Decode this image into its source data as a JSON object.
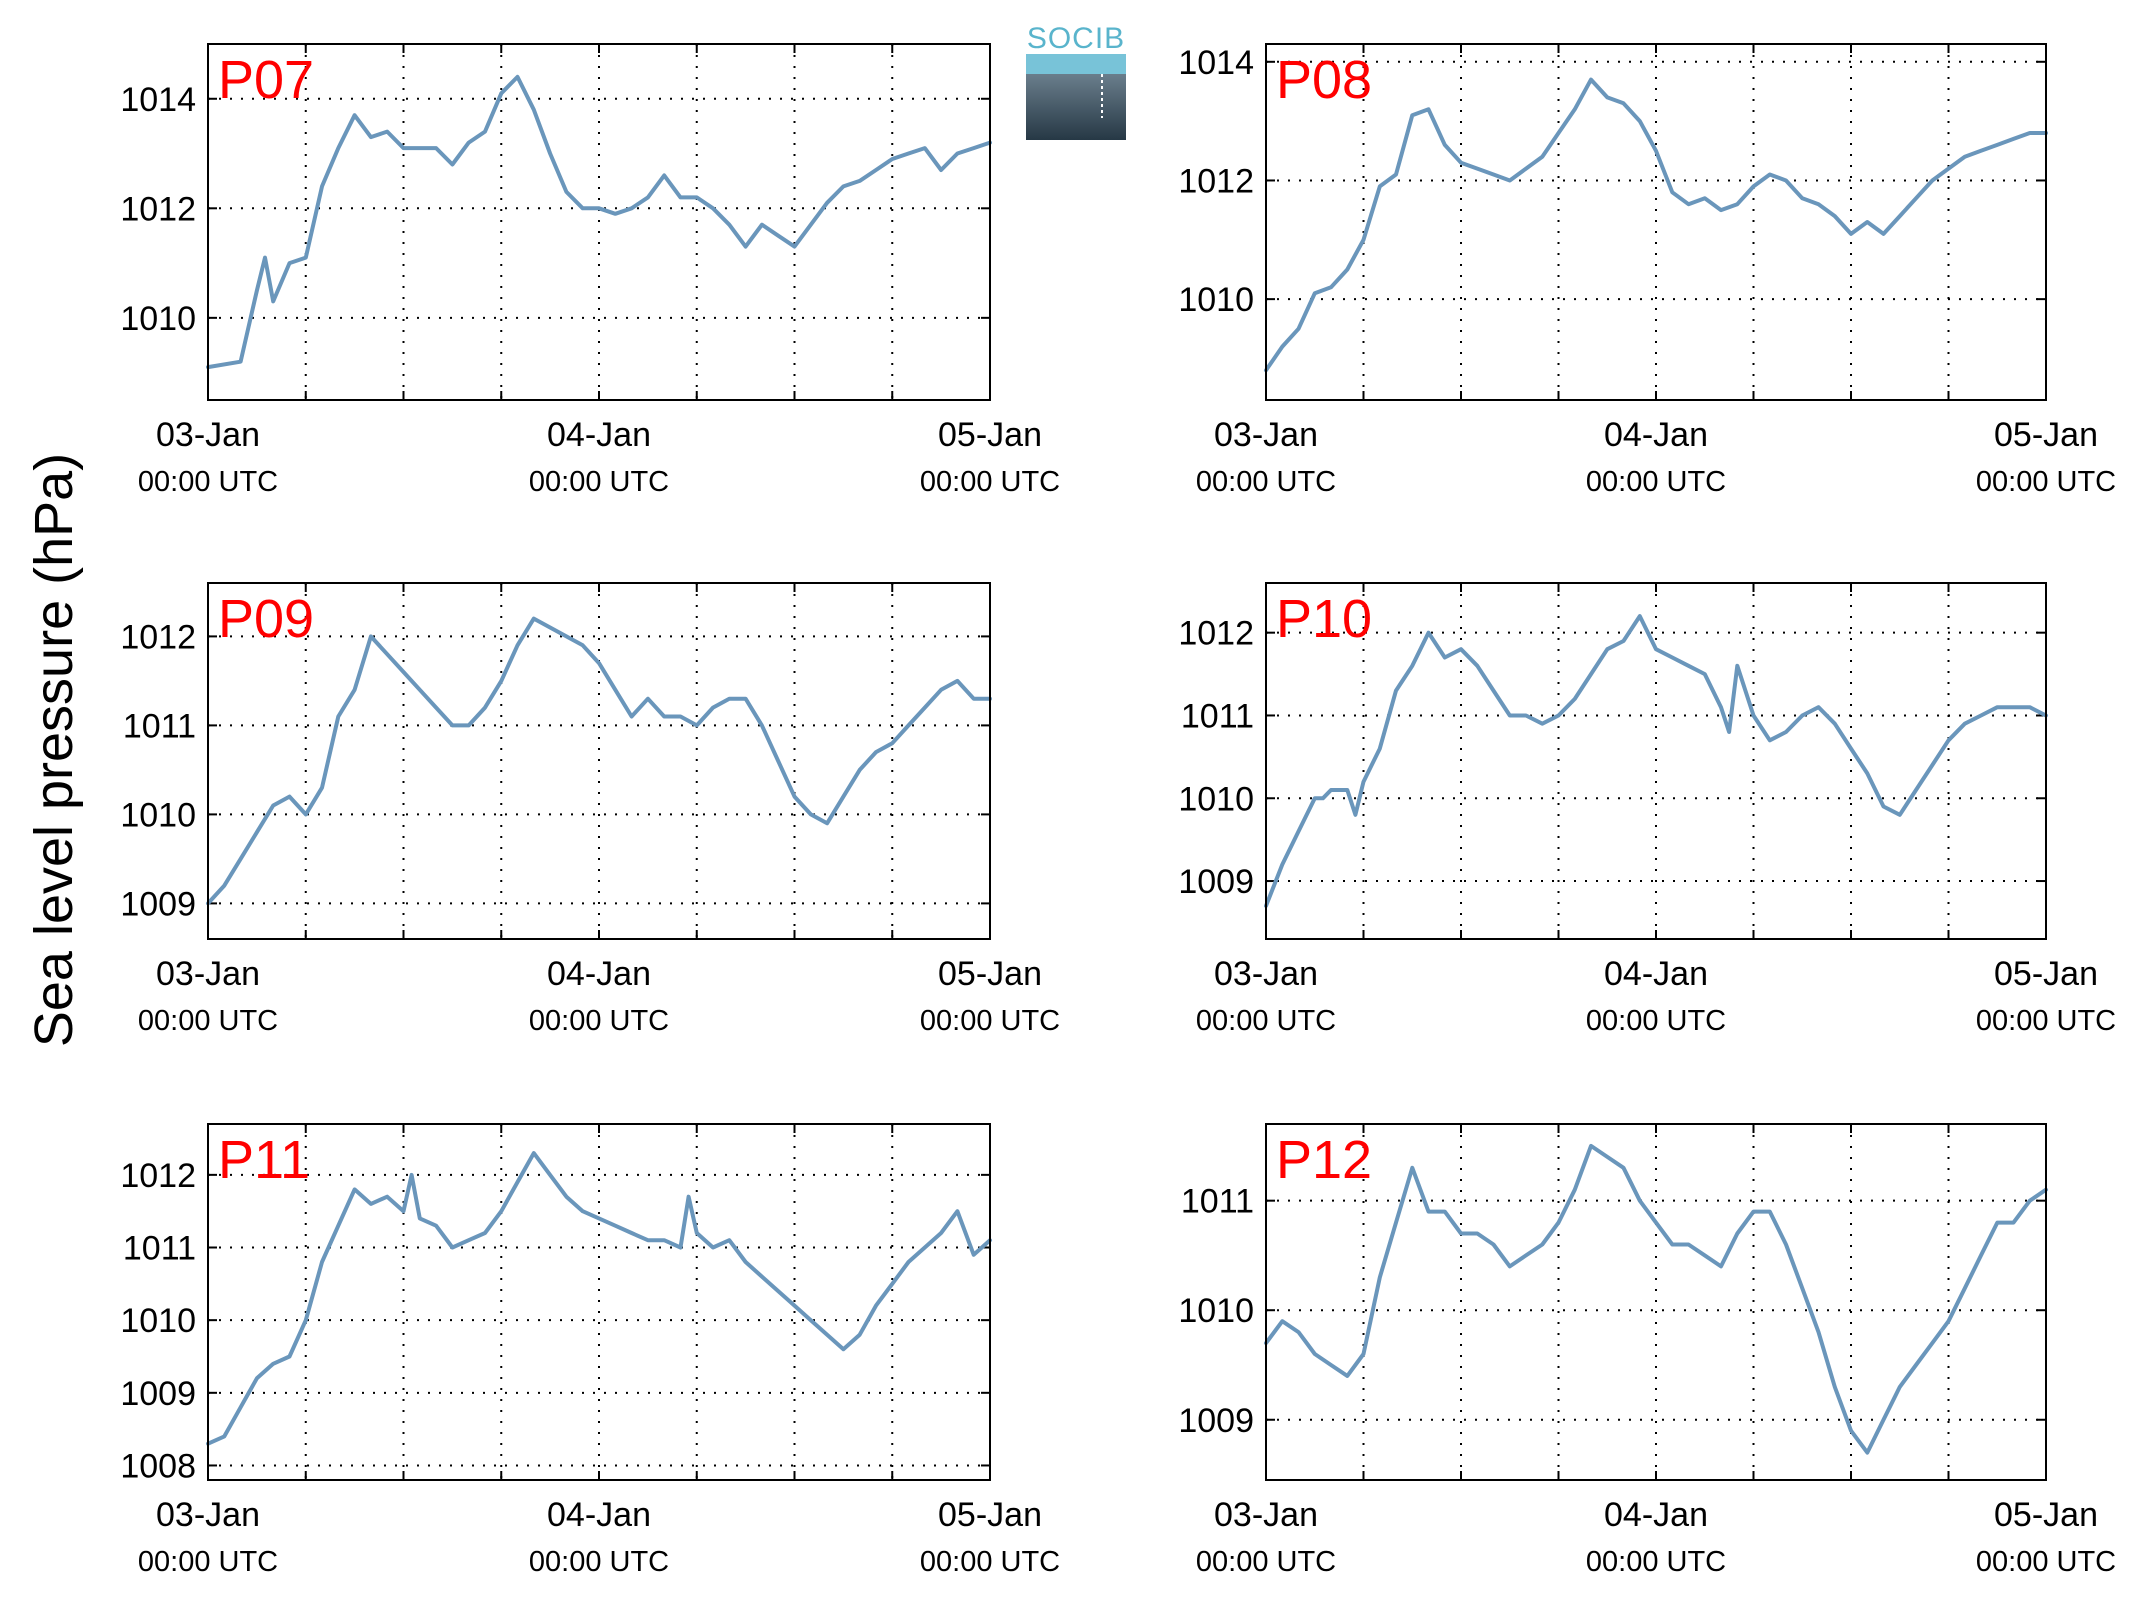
{
  "figure": {
    "ylabel": "Sea level pressure (hPa)",
    "logo": {
      "text": "SOCIB"
    },
    "x_tick_labels": [
      {
        "date": "03-Jan",
        "time": "00:00 UTC"
      },
      {
        "date": "04-Jan",
        "time": "00:00 UTC"
      },
      {
        "date": "05-Jan",
        "time": "00:00 UTC"
      }
    ]
  },
  "colors": {
    "line": "#6a96bb",
    "label": "#ff0000",
    "axes": "#000000",
    "grid": "#000000"
  },
  "chart_data": [
    {
      "type": "line",
      "panel": "P07",
      "xlim": [
        0,
        48
      ],
      "ylim": [
        1008.5,
        1015
      ],
      "yticks": [
        1010,
        1012,
        1014
      ],
      "x_unit": "hours since 03-Jan 00:00 UTC",
      "grid": true,
      "x": [
        0,
        2,
        3,
        3.5,
        4,
        5,
        6,
        7,
        8,
        9,
        10,
        11,
        12,
        13,
        14,
        15,
        16,
        17,
        18,
        19,
        20,
        21,
        22,
        23,
        24,
        25,
        26,
        27,
        28,
        29,
        30,
        31,
        32,
        33,
        34,
        35,
        36,
        37,
        38,
        39,
        40,
        41,
        42,
        43,
        44,
        45,
        46,
        47,
        48
      ],
      "y": [
        1009.1,
        1009.2,
        1010.5,
        1011.1,
        1010.3,
        1011,
        1011.1,
        1012.4,
        1013.1,
        1013.7,
        1013.3,
        1013.4,
        1013.1,
        1013.1,
        1013.1,
        1012.8,
        1013.2,
        1013.4,
        1014.1,
        1014.4,
        1013.8,
        1013,
        1012.3,
        1012,
        1012,
        1011.9,
        1012,
        1012.2,
        1012.6,
        1012.2,
        1012.2,
        1012,
        1011.7,
        1011.3,
        1011.7,
        1011.5,
        1011.3,
        1011.7,
        1012.1,
        1012.4,
        1012.5,
        1012.7,
        1012.9,
        1013,
        1013.1,
        1012.7,
        1013,
        1013.1,
        1013.2
      ]
    },
    {
      "type": "line",
      "panel": "P08",
      "xlim": [
        0,
        48
      ],
      "ylim": [
        1008.3,
        1014.3
      ],
      "yticks": [
        1010,
        1012,
        1014
      ],
      "x_unit": "hours since 03-Jan 00:00 UTC",
      "grid": true,
      "x": [
        0,
        1,
        2,
        3,
        4,
        5,
        6,
        7,
        8,
        9,
        10,
        11,
        12,
        13,
        14,
        15,
        16,
        17,
        18,
        19,
        20,
        21,
        22,
        23,
        24,
        25,
        26,
        27,
        28,
        29,
        30,
        31,
        32,
        33,
        34,
        35,
        36,
        37,
        38,
        39,
        40,
        41,
        42,
        43,
        44,
        45,
        46,
        47,
        48
      ],
      "y": [
        1008.8,
        1009.2,
        1009.5,
        1010.1,
        1010.2,
        1010.5,
        1011,
        1011.9,
        1012.1,
        1013.1,
        1013.2,
        1012.6,
        1012.3,
        1012.2,
        1012.1,
        1012,
        1012.2,
        1012.4,
        1012.8,
        1013.2,
        1013.7,
        1013.4,
        1013.3,
        1013,
        1012.5,
        1011.8,
        1011.6,
        1011.7,
        1011.5,
        1011.6,
        1011.9,
        1012.1,
        1012,
        1011.7,
        1011.6,
        1011.4,
        1011.1,
        1011.3,
        1011.1,
        1011.4,
        1011.7,
        1012,
        1012.2,
        1012.4,
        1012.5,
        1012.6,
        1012.7,
        1012.8,
        1012.8
      ]
    },
    {
      "type": "line",
      "panel": "P09",
      "xlim": [
        0,
        48
      ],
      "ylim": [
        1008.6,
        1012.6
      ],
      "yticks": [
        1009,
        1010,
        1011,
        1012
      ],
      "x_unit": "hours since 03-Jan 00:00 UTC",
      "grid": true,
      "x": [
        0,
        1,
        2,
        3,
        4,
        5,
        6,
        7,
        8,
        9,
        10,
        11,
        12,
        13,
        14,
        15,
        16,
        17,
        18,
        19,
        20,
        21,
        22,
        23,
        24,
        25,
        26,
        27,
        28,
        29,
        30,
        31,
        32,
        33,
        34,
        35,
        36,
        37,
        38,
        39,
        40,
        41,
        42,
        43,
        44,
        45,
        46,
        47,
        48
      ],
      "y": [
        1009,
        1009.2,
        1009.5,
        1009.8,
        1010.1,
        1010.2,
        1010,
        1010.3,
        1011.1,
        1011.4,
        1012,
        1011.8,
        1011.6,
        1011.4,
        1011.2,
        1011,
        1011,
        1011.2,
        1011.5,
        1011.9,
        1012.2,
        1012.1,
        1012,
        1011.9,
        1011.7,
        1011.4,
        1011.1,
        1011.3,
        1011.1,
        1011.1,
        1011,
        1011.2,
        1011.3,
        1011.3,
        1011,
        1010.6,
        1010.2,
        1010,
        1009.9,
        1010.2,
        1010.5,
        1010.7,
        1010.8,
        1011,
        1011.2,
        1011.4,
        1011.5,
        1011.3,
        1011.3
      ]
    },
    {
      "type": "line",
      "panel": "P10",
      "xlim": [
        0,
        48
      ],
      "ylim": [
        1008.3,
        1012.6
      ],
      "yticks": [
        1009,
        1010,
        1011,
        1012
      ],
      "x_unit": "hours since 03-Jan 00:00 UTC",
      "grid": true,
      "x": [
        0,
        1,
        2,
        3,
        3.5,
        4,
        5,
        5.5,
        6,
        7,
        8,
        9,
        10,
        11,
        12,
        13,
        14,
        15,
        16,
        17,
        18,
        19,
        20,
        21,
        22,
        23,
        24,
        25,
        26,
        27,
        28,
        28.5,
        29,
        30,
        31,
        32,
        33,
        34,
        35,
        36,
        37,
        38,
        39,
        40,
        41,
        42,
        43,
        44,
        45,
        46,
        47,
        48
      ],
      "y": [
        1008.7,
        1009.2,
        1009.6,
        1010,
        1010,
        1010.1,
        1010.1,
        1009.8,
        1010.2,
        1010.6,
        1011.3,
        1011.6,
        1012,
        1011.7,
        1011.8,
        1011.6,
        1011.3,
        1011,
        1011,
        1010.9,
        1011,
        1011.2,
        1011.5,
        1011.8,
        1011.9,
        1012.2,
        1011.8,
        1011.7,
        1011.6,
        1011.5,
        1011.1,
        1010.8,
        1011.6,
        1011,
        1010.7,
        1010.8,
        1011,
        1011.1,
        1010.9,
        1010.6,
        1010.3,
        1009.9,
        1009.8,
        1010.1,
        1010.4,
        1010.7,
        1010.9,
        1011,
        1011.1,
        1011.1,
        1011.1,
        1011
      ]
    },
    {
      "type": "line",
      "panel": "P11",
      "xlim": [
        0,
        48
      ],
      "ylim": [
        1007.8,
        1012.7
      ],
      "yticks": [
        1008,
        1009,
        1010,
        1011,
        1012
      ],
      "x_unit": "hours since 03-Jan 00:00 UTC",
      "grid": true,
      "x": [
        0,
        1,
        2,
        3,
        4,
        5,
        6,
        7,
        8,
        9,
        10,
        11,
        12,
        12.5,
        13,
        14,
        15,
        16,
        17,
        18,
        19,
        20,
        21,
        22,
        23,
        24,
        25,
        26,
        27,
        28,
        29,
        29.5,
        30,
        31,
        32,
        33,
        34,
        35,
        36,
        37,
        38,
        39,
        40,
        41,
        42,
        43,
        44,
        45,
        46,
        47,
        48
      ],
      "y": [
        1008.3,
        1008.4,
        1008.8,
        1009.2,
        1009.4,
        1009.5,
        1010,
        1010.8,
        1011.3,
        1011.8,
        1011.6,
        1011.7,
        1011.5,
        1012,
        1011.4,
        1011.3,
        1011,
        1011.1,
        1011.2,
        1011.5,
        1011.9,
        1012.3,
        1012,
        1011.7,
        1011.5,
        1011.4,
        1011.3,
        1011.2,
        1011.1,
        1011.1,
        1011,
        1011.7,
        1011.2,
        1011,
        1011.1,
        1010.8,
        1010.6,
        1010.4,
        1010.2,
        1010,
        1009.8,
        1009.6,
        1009.8,
        1010.2,
        1010.5,
        1010.8,
        1011,
        1011.2,
        1011.5,
        1010.9,
        1011.1
      ]
    },
    {
      "type": "line",
      "panel": "P12",
      "xlim": [
        0,
        48
      ],
      "ylim": [
        1008.45,
        1011.7
      ],
      "yticks": [
        1009,
        1010,
        1011
      ],
      "x_unit": "hours since 03-Jan 00:00 UTC",
      "grid": true,
      "x": [
        0,
        1,
        2,
        3,
        4,
        5,
        6,
        7,
        8,
        9,
        10,
        11,
        12,
        13,
        14,
        15,
        16,
        17,
        18,
        19,
        20,
        21,
        22,
        23,
        24,
        25,
        26,
        27,
        28,
        29,
        30,
        31,
        32,
        33,
        34,
        35,
        36,
        37,
        38,
        39,
        40,
        41,
        42,
        43,
        44,
        45,
        46,
        47,
        48
      ],
      "y": [
        1009.7,
        1009.9,
        1009.8,
        1009.6,
        1009.5,
        1009.4,
        1009.6,
        1010.3,
        1010.8,
        1011.3,
        1010.9,
        1010.9,
        1010.7,
        1010.7,
        1010.6,
        1010.4,
        1010.5,
        1010.6,
        1010.8,
        1011.1,
        1011.5,
        1011.4,
        1011.3,
        1011,
        1010.8,
        1010.6,
        1010.6,
        1010.5,
        1010.4,
        1010.7,
        1010.9,
        1010.9,
        1010.6,
        1010.2,
        1009.8,
        1009.3,
        1008.9,
        1008.7,
        1009,
        1009.3,
        1009.5,
        1009.7,
        1009.9,
        1010.2,
        1010.5,
        1010.8,
        1010.8,
        1011,
        1011.1
      ]
    }
  ]
}
